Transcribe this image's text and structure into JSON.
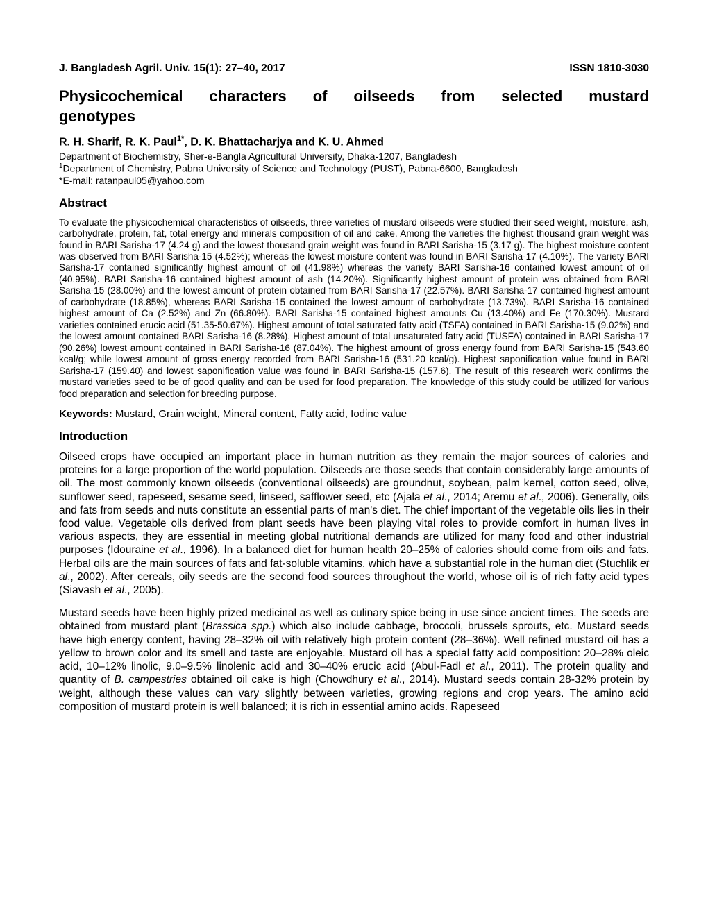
{
  "header": {
    "journal": "J. Bangladesh Agril. Univ. 15(1): 27–40, 2017",
    "issn": "ISSN 1810-3030"
  },
  "title_line1": "Physicochemical characters of oilseeds from selected mustard",
  "title_line2": "genotypes",
  "authors_html": "R. H. Sharif, R. K. Paul<sup>1*</sup>, D. K. Bhattacharjya and K. U. Ahmed",
  "affiliation_html": "Department of Biochemistry, Sher-e-Bangla Agricultural University, Dhaka-1207, Bangladesh<br><sup>1</sup>Department of Chemistry, Pabna University of Science and Technology (PUST), Pabna-6600, Bangladesh<br>*E-mail: ratanpaul05@yahoo.com",
  "abstract_heading": "Abstract",
  "abstract_body": "To evaluate the physicochemical characteristics of oilseeds, three varieties of mustard oilseeds were studied their seed weight, moisture, ash, carbohydrate, protein, fat, total energy and minerals composition of oil and cake. Among the varieties the highest thousand grain weight was found in BARI Sarisha-17 (4.24 g) and the lowest thousand grain weight was found in BARI Sarisha-15 (3.17 g). The highest moisture content was observed from BARI Sarisha-15 (4.52%); whereas the lowest moisture content was found in BARI Sarisha-17 (4.10%). The variety BARI Sarisha-17 contained significantly highest amount of oil (41.98%) whereas the variety BARI Sarisha-16 contained lowest amount of oil (40.95%). BARI Sarisha-16 contained highest amount of ash (14.20%). Significantly highest amount of protein was obtained from BARI Sarisha-15 (28.00%) and the lowest amount of protein obtained from BARI Sarisha-17 (22.57%). BARI Sarisha-17 contained highest amount of carbohydrate (18.85%), whereas BARI Sarisha-15 contained the lowest amount of carbohydrate (13.73%). BARI Sarisha-16 contained highest amount of Ca (2.52%) and Zn (66.80%). BARI Sarisha-15 contained highest amounts Cu (13.40%) and Fe (170.30%). Mustard varieties contained erucic acid (51.35-50.67%). Highest amount of total saturated fatty acid (TSFA) contained in BARI Sarisha-15 (9.02%) and the lowest amount contained BARI Sarisha-16 (8.28%). Highest amount of total unsaturated fatty acid (TUSFA) contained in BARI Sarisha-17 (90.26%) lowest amount contained in BARI Sarisha-16 (87.04%). The highest amount of gross energy found from BARI Sarisha-15 (543.60 kcal/g; while lowest amount of gross energy recorded from BARI Sarisha-16 (531.20 kcal/g). Highest saponification value found in BARI Sarisha-17 (159.40) and lowest saponification value was found in BARI Sarisha-15 (157.6). The result of this research work confirms the mustard varieties seed to be of good quality and can be used for food preparation. The knowledge of this study could be utilized for various food preparation and selection for breeding purpose.",
  "keywords_label": "Keywords:",
  "keywords_text": " Mustard, Grain weight, Mineral content, Fatty acid, Iodine value",
  "intro_heading": "Introduction",
  "intro_p1_html": "Oilseed crops have occupied an important place in human nutrition as they remain the major sources of calories and proteins for a large proportion of the world population. Oilseeds are those seeds that contain considerably large amounts of oil. The most commonly known oilseeds (conventional oilseeds) are groundnut, soybean, palm kernel, cotton seed, olive, sunflower seed, rapeseed, sesame seed, linseed, safflower seed, etc (Ajala <span class=\"italic\">et al</span>., 2014; Aremu <span class=\"italic\">et al</span>., 2006). Generally, oils and fats from seeds and nuts constitute an essential parts of man's diet. The chief important of the vegetable oils lies in their food value. Vegetable oils derived from plant seeds have been playing vital roles to provide comfort in human lives in various aspects, they are essential in meeting global nutritional demands are utilized for many food and other industrial purposes (Idouraine <span class=\"italic\">et al</span>., 1996). In a balanced diet for human health 20–25% of calories should come from oils and fats. Herbal oils are the main sources of fats and fat-soluble vitamins, which have a substantial role in the human diet (Stuchlik <span class=\"italic\">et al</span>., 2002). After cereals, oily seeds are the second food sources throughout the world, whose oil is of rich fatty acid types (Siavash <span class=\"italic\">et al</span>., 2005).",
  "intro_p2_html": "Mustard seeds have been highly prized medicinal as well as culinary spice being in use since ancient times. The seeds are obtained from mustard plant (<span class=\"italic\">Brassica spp.</span>) which also include cabbage, broccoli, brussels sprouts, etc. Mustard seeds have high energy content, having 28–32% oil with relatively high protein content (28–36%). Well refined mustard oil has a yellow to brown color and its smell and taste are enjoyable. Mustard oil has a special fatty acid composition: 20–28% oleic acid, 10–12% linolic, 9.0–9.5% linolenic acid and 30–40% erucic acid (Abul-Fadl <span class=\"italic\">et al</span>., 2011). The protein quality and quantity of <span class=\"italic\">B. campestries</span> obtained oil cake is high (Chowdhury <span class=\"italic\">et al</span>., 2014). Mustard seeds contain 28-32% protein by weight, although these values can vary slightly between varieties, growing regions and crop years. The amino acid composition of mustard protein is well balanced; it is rich in essential amino  acids.  Rapeseed"
}
